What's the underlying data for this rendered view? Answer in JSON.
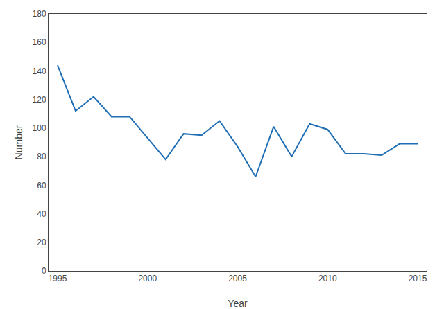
{
  "chart_data": {
    "type": "line",
    "x": [
      1995,
      1996,
      1997,
      1998,
      1999,
      2000,
      2001,
      2002,
      2003,
      2004,
      2005,
      2006,
      2007,
      2008,
      2009,
      2010,
      2011,
      2012,
      2013,
      2014,
      2015
    ],
    "values": [
      144,
      112,
      122,
      108,
      108,
      93,
      78,
      96,
      95,
      105,
      87,
      66,
      101,
      80,
      103,
      99,
      82,
      82,
      81,
      89,
      89
    ],
    "color": "#1F6EB5",
    "xlabel": "Year",
    "ylabel": "Number",
    "xlim": [
      1994.5,
      2015.5
    ],
    "ylim": [
      0,
      180
    ],
    "xticks": [
      1995,
      2000,
      2005,
      2010,
      2015
    ],
    "yticks": [
      0,
      20,
      40,
      60,
      80,
      100,
      120,
      140,
      160,
      180
    ],
    "grid": false
  }
}
